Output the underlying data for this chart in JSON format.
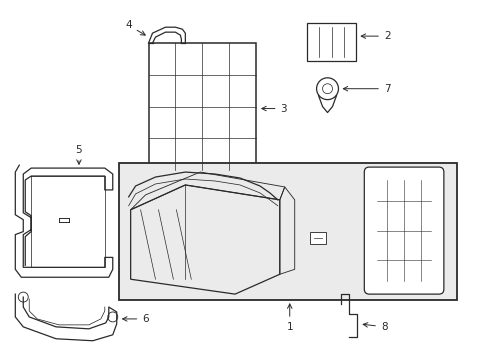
{
  "bg_color": "#ffffff",
  "line_color": "#2a2a2a",
  "box_bg": "#ebebeb",
  "fig_width": 4.89,
  "fig_height": 3.6,
  "dpi": 100
}
